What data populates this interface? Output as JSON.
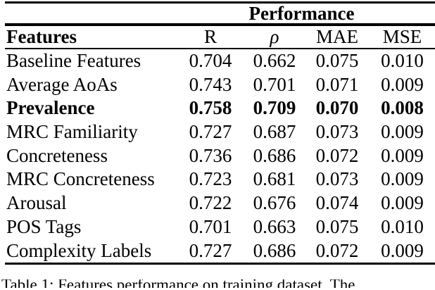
{
  "page": {
    "background": "#ffffff",
    "text_color": "#000000"
  },
  "table": {
    "spanner": "Performance",
    "headers": {
      "feature": "Features",
      "r": "R",
      "rho": "ρ",
      "mae": "MAE",
      "mse": "MSE"
    },
    "rows": [
      {
        "feature": "Baseline Features",
        "r": "0.704",
        "rho": "0.662",
        "mae": "0.075",
        "mse": "0.010",
        "bold": false
      },
      {
        "feature": "Average AoAs",
        "r": "0.743",
        "rho": "0.701",
        "mae": "0.071",
        "mse": "0.009",
        "bold": false
      },
      {
        "feature": "Prevalence",
        "r": "0.758",
        "rho": "0.709",
        "mae": "0.070",
        "mse": "0.008",
        "bold": true
      },
      {
        "feature": "MRC Familiarity",
        "r": "0.727",
        "rho": "0.687",
        "mae": "0.073",
        "mse": "0.009",
        "bold": false
      },
      {
        "feature": "Concreteness",
        "r": "0.736",
        "rho": "0.686",
        "mae": "0.072",
        "mse": "0.009",
        "bold": false
      },
      {
        "feature": "MRC Concreteness",
        "r": "0.723",
        "rho": "0.681",
        "mae": "0.073",
        "mse": "0.009",
        "bold": false
      },
      {
        "feature": "Arousal",
        "r": "0.722",
        "rho": "0.676",
        "mae": "0.074",
        "mse": "0.009",
        "bold": false
      },
      {
        "feature": "POS Tags",
        "r": "0.701",
        "rho": "0.663",
        "mae": "0.075",
        "mse": "0.010",
        "bold": false
      },
      {
        "feature": "Complexity Labels",
        "r": "0.727",
        "rho": "0.686",
        "mae": "0.072",
        "mse": "0.009",
        "bold": false
      }
    ]
  },
  "caption": {
    "text": "Table 1: Features performance on training dataset. The"
  }
}
